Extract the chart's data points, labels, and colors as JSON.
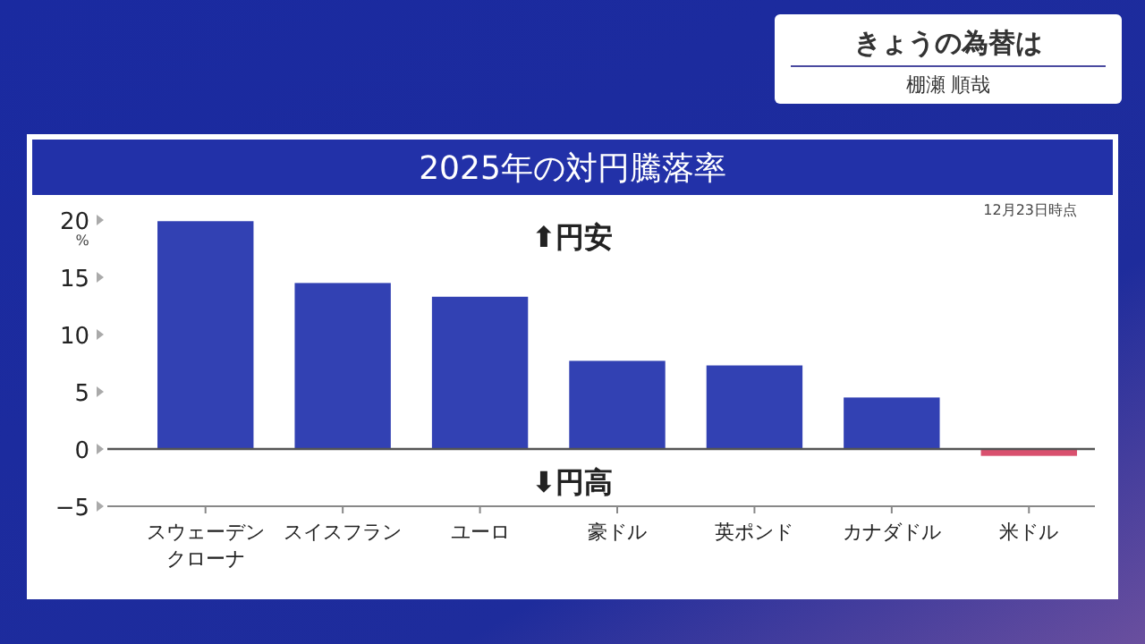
{
  "chart_data": {
    "type": "bar",
    "title": "2025年の対円騰落率",
    "ylabel": "%",
    "categories": [
      "スウェーデンクローナ",
      "スイスフラン",
      "ユーロ",
      "豪ドル",
      "英ポンド",
      "カナダドル",
      "米ドル"
    ],
    "values": [
      19.9,
      14.5,
      13.3,
      7.7,
      7.3,
      4.5,
      -0.6
    ],
    "colors": [
      "#3241b3",
      "#3241b3",
      "#3241b3",
      "#3241b3",
      "#3241b3",
      "#3241b3",
      "#d9506e"
    ],
    "ylim": [
      -5,
      20
    ],
    "yticks": [
      {
        "value": -5,
        "label": "−5"
      },
      0,
      5,
      10,
      15,
      20
    ],
    "annotations": [
      "⬆円安",
      "⬇円高",
      "12月23日時点",
      "きょうの為替は",
      "棚瀬 順哉"
    ]
  }
}
